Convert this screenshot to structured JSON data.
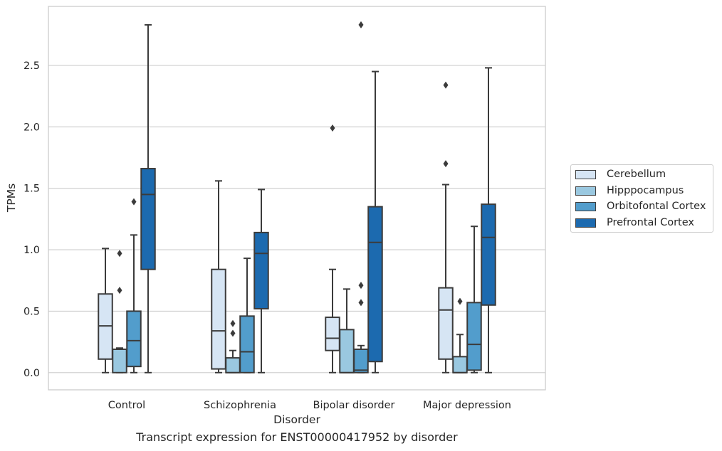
{
  "caption": "Transcript expression for ENST00000417952 by disorder",
  "chart_data": {
    "type": "box",
    "xlabel": "Disorder",
    "ylabel": "TPMs",
    "ylim": [
      -0.14,
      2.98
    ],
    "yticks": [
      "0.0",
      "0.5",
      "1.0",
      "1.5",
      "2.0",
      "2.5"
    ],
    "categories": [
      "Control",
      "Schizophrenia",
      "Bipolar disorder",
      "Major depression"
    ],
    "grid": "horizontal",
    "legend_position": "right",
    "series": [
      {
        "name": "Cerebellum",
        "color": "#d6e5f4",
        "boxes": [
          {
            "whislo": 0.0,
            "q1": 0.11,
            "med": 0.38,
            "q3": 0.64,
            "whishi": 1.01,
            "fliers": []
          },
          {
            "whislo": 0.0,
            "q1": 0.03,
            "med": 0.34,
            "q3": 0.84,
            "whishi": 1.56,
            "fliers": []
          },
          {
            "whislo": 0.0,
            "q1": 0.18,
            "med": 0.28,
            "q3": 0.45,
            "whishi": 0.84,
            "fliers": [
              1.99
            ]
          },
          {
            "whislo": 0.0,
            "q1": 0.11,
            "med": 0.51,
            "q3": 0.69,
            "whishi": 1.53,
            "fliers": [
              1.7,
              2.34
            ]
          }
        ]
      },
      {
        "name": "Hipppocampus",
        "color": "#9ac8e0",
        "boxes": [
          {
            "whislo": 0.0,
            "q1": 0.0,
            "med": 0.19,
            "q3": 0.19,
            "whishi": 0.2,
            "fliers": [
              0.67,
              0.97
            ]
          },
          {
            "whislo": 0.0,
            "q1": 0.0,
            "med": 0.0,
            "q3": 0.12,
            "whishi": 0.18,
            "fliers": [
              0.32,
              0.4
            ]
          },
          {
            "whislo": 0.0,
            "q1": 0.0,
            "med": 0.0,
            "q3": 0.35,
            "whishi": 0.68,
            "fliers": []
          },
          {
            "whislo": 0.0,
            "q1": 0.0,
            "med": 0.0,
            "q3": 0.13,
            "whishi": 0.31,
            "fliers": [
              0.58
            ]
          }
        ]
      },
      {
        "name": "Orbitofontal Cortex",
        "color": "#529dcc",
        "boxes": [
          {
            "whislo": 0.0,
            "q1": 0.05,
            "med": 0.26,
            "q3": 0.5,
            "whishi": 1.12,
            "fliers": [
              1.39
            ]
          },
          {
            "whislo": 0.0,
            "q1": 0.0,
            "med": 0.17,
            "q3": 0.46,
            "whishi": 0.93,
            "fliers": []
          },
          {
            "whislo": 0.0,
            "q1": 0.0,
            "med": 0.02,
            "q3": 0.19,
            "whishi": 0.22,
            "fliers": [
              0.57,
              0.71,
              2.83
            ]
          },
          {
            "whislo": 0.0,
            "q1": 0.02,
            "med": 0.23,
            "q3": 0.57,
            "whishi": 1.19,
            "fliers": []
          }
        ]
      },
      {
        "name": "Prefrontal Cortex",
        "color": "#1c6aaf",
        "boxes": [
          {
            "whislo": 0.0,
            "q1": 0.84,
            "med": 1.45,
            "q3": 1.66,
            "whishi": 2.83,
            "fliers": []
          },
          {
            "whislo": 0.0,
            "q1": 0.52,
            "med": 0.97,
            "q3": 1.14,
            "whishi": 1.49,
            "fliers": []
          },
          {
            "whislo": 0.0,
            "q1": 0.09,
            "med": 1.06,
            "q3": 1.35,
            "whishi": 2.45,
            "fliers": []
          },
          {
            "whislo": 0.0,
            "q1": 0.55,
            "med": 1.1,
            "q3": 1.37,
            "whishi": 2.48,
            "fliers": []
          }
        ]
      }
    ]
  }
}
